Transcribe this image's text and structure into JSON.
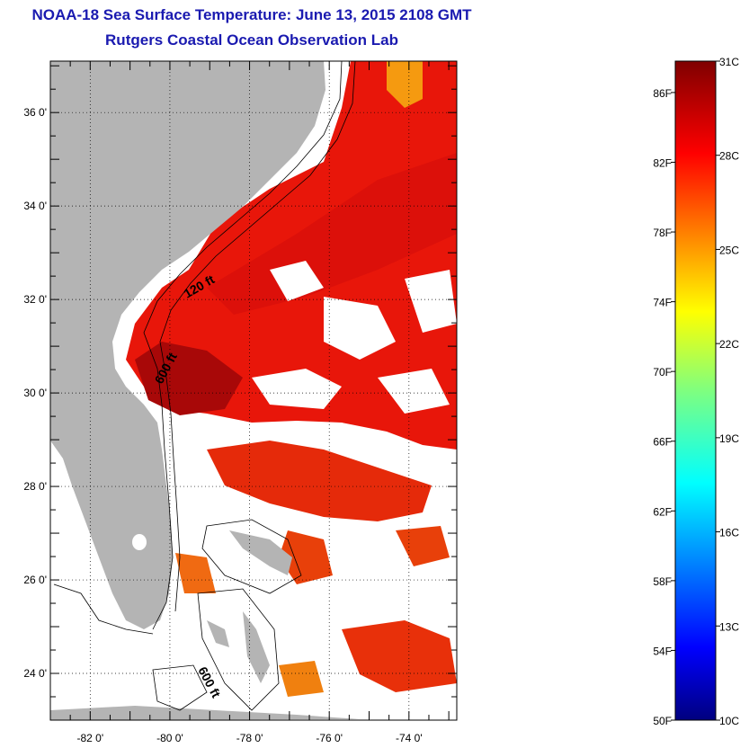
{
  "title": "NOAA-18 Sea Surface Temperature:  June 13, 2015 2108 GMT",
  "subtitle": "Rutgers Coastal Ocean Observation Lab",
  "map": {
    "lat_ticks": [
      {
        "value": 36,
        "label": "36 0'"
      },
      {
        "value": 34,
        "label": "34 0'"
      },
      {
        "value": 32,
        "label": "32 0'"
      },
      {
        "value": 30,
        "label": "30 0'"
      },
      {
        "value": 28,
        "label": "28 0'"
      },
      {
        "value": 26,
        "label": "26 0'"
      },
      {
        "value": 24,
        "label": "24 0'"
      }
    ],
    "lon_ticks": [
      {
        "value": -82,
        "label": "-82 0'"
      },
      {
        "value": -80,
        "label": "-80 0'"
      },
      {
        "value": -78,
        "label": "-78 0'"
      },
      {
        "value": -76,
        "label": "-76 0'"
      },
      {
        "value": -74,
        "label": "-74 0'"
      }
    ],
    "lat_range": [
      23,
      37.1
    ],
    "lon_range": [
      -83,
      -72.8
    ],
    "contour_labels": [
      "120 ft",
      "600 ft",
      "600 ft"
    ],
    "colors": {
      "land": "#b4b4b4",
      "cloud": "#ffffff",
      "warm_water": "#e8140a",
      "hot_water": "#8a0000"
    }
  },
  "colorbar": {
    "fahrenheit": [
      "86F",
      "82F",
      "78F",
      "74F",
      "70F",
      "66F",
      "62F",
      "58F",
      "54F",
      "50F"
    ],
    "celsius": [
      "31C",
      "28C",
      "25C",
      "22C",
      "19C",
      "16C",
      "13C",
      "10C"
    ],
    "range_c": [
      10,
      31
    ],
    "colormap": "jet"
  }
}
